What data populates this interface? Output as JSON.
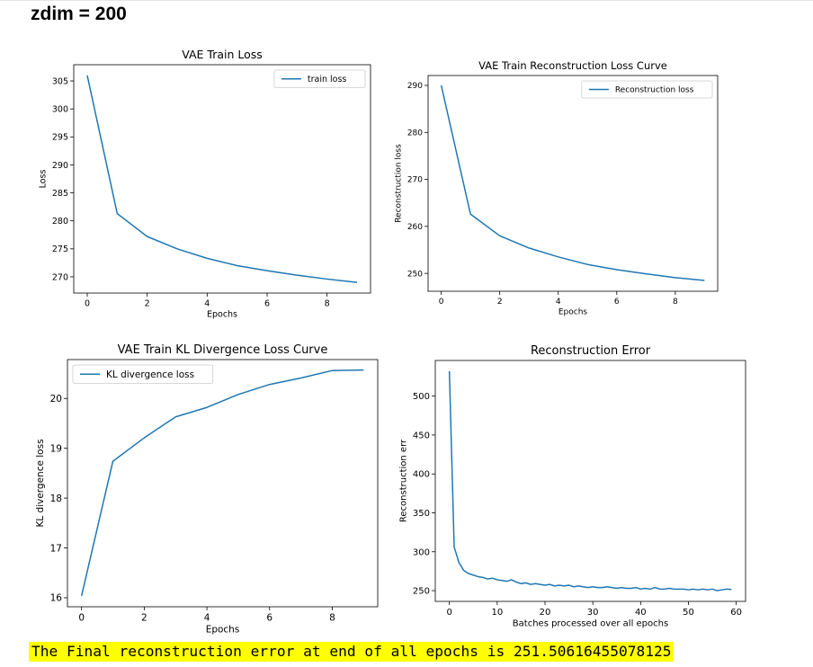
{
  "heading": "zdim = 200",
  "footer_text": "The Final reconstruction error at end of all epochs is 251.50616455078125",
  "colors": {
    "line": "#1f77b4",
    "highlight": "#ffff00"
  },
  "chart_data": [
    {
      "type": "line",
      "title": "VAE Train Loss",
      "xlabel": "Epochs",
      "ylabel": "Loss",
      "xlim": [
        -0.45,
        9.45
      ],
      "ylim": [
        267.1,
        307.9
      ],
      "xticks": [
        0,
        2,
        4,
        6,
        8
      ],
      "yticks": [
        270,
        275,
        280,
        285,
        290,
        295,
        300,
        305
      ],
      "legend": "top-right",
      "series": [
        {
          "name": "train loss",
          "x": [
            0,
            1,
            2,
            3,
            4,
            5,
            6,
            7,
            8,
            9
          ],
          "y": [
            306.0,
            281.3,
            277.2,
            275.0,
            273.3,
            272.0,
            271.1,
            270.3,
            269.6,
            269.0
          ]
        }
      ]
    },
    {
      "type": "line",
      "title": "VAE Train Reconstruction Loss Curve",
      "xlabel": "Epochs",
      "ylabel": "Reconstruction loss",
      "xlim": [
        -0.45,
        9.45
      ],
      "ylim": [
        246.2,
        292.1
      ],
      "xticks": [
        0,
        2,
        4,
        6,
        8
      ],
      "yticks": [
        250,
        260,
        270,
        280,
        290
      ],
      "legend": "top-right",
      "series": [
        {
          "name": "Reconstruction loss",
          "x": [
            0,
            1,
            2,
            3,
            4,
            5,
            6,
            7,
            8,
            9
          ],
          "y": [
            290.0,
            262.6,
            258.0,
            255.4,
            253.5,
            251.9,
            250.8,
            249.9,
            249.1,
            248.5
          ]
        }
      ]
    },
    {
      "type": "line",
      "title": "VAE Train KL Divergence Loss Curve",
      "xlabel": "Epochs",
      "ylabel": "KL divergence loss",
      "xlim": [
        -0.45,
        9.45
      ],
      "ylim": [
        15.82,
        20.78
      ],
      "xticks": [
        0,
        2,
        4,
        6,
        8
      ],
      "yticks": [
        16,
        17,
        18,
        19,
        20
      ],
      "legend": "top-left",
      "series": [
        {
          "name": "KL divergence loss",
          "x": [
            0,
            1,
            2,
            3,
            4,
            5,
            6,
            7,
            8,
            9
          ],
          "y": [
            16.04,
            18.74,
            19.21,
            19.63,
            19.82,
            20.08,
            20.28,
            20.41,
            20.56,
            20.57
          ]
        }
      ]
    },
    {
      "type": "line",
      "title": "Reconstruction Error",
      "xlabel": "Batches processed over all epochs",
      "ylabel": "Reconstruction err",
      "xlim": [
        -2.95,
        61.95
      ],
      "ylim": [
        236.2,
        545.8
      ],
      "xticks": [
        0,
        10,
        20,
        30,
        40,
        50,
        60
      ],
      "yticks": [
        250,
        300,
        350,
        400,
        450,
        500
      ],
      "series": [
        {
          "name": "Reconstruction err",
          "x": [
            0,
            1,
            2,
            3,
            4,
            5,
            6,
            7,
            8,
            9,
            10,
            11,
            12,
            13,
            14,
            15,
            16,
            17,
            18,
            19,
            20,
            21,
            22,
            23,
            24,
            25,
            26,
            27,
            28,
            29,
            30,
            31,
            32,
            33,
            34,
            35,
            36,
            37,
            38,
            39,
            40,
            41,
            42,
            43,
            44,
            45,
            46,
            47,
            48,
            49,
            50,
            51,
            52,
            53,
            54,
            55,
            56,
            57,
            58,
            59
          ],
          "y": [
            532,
            306,
            286,
            276,
            272,
            270,
            268,
            267,
            265,
            266,
            264,
            263,
            262,
            264,
            261,
            259,
            260,
            258,
            259,
            258,
            257,
            258,
            256,
            257,
            256,
            257,
            255,
            256,
            255,
            254,
            255,
            254,
            254,
            255,
            254,
            253,
            254,
            253,
            253,
            254,
            252,
            253,
            252,
            254,
            252,
            252,
            253,
            252,
            252,
            252,
            251,
            252,
            251,
            252,
            251,
            252,
            250,
            251,
            252,
            251.5
          ]
        }
      ]
    }
  ]
}
